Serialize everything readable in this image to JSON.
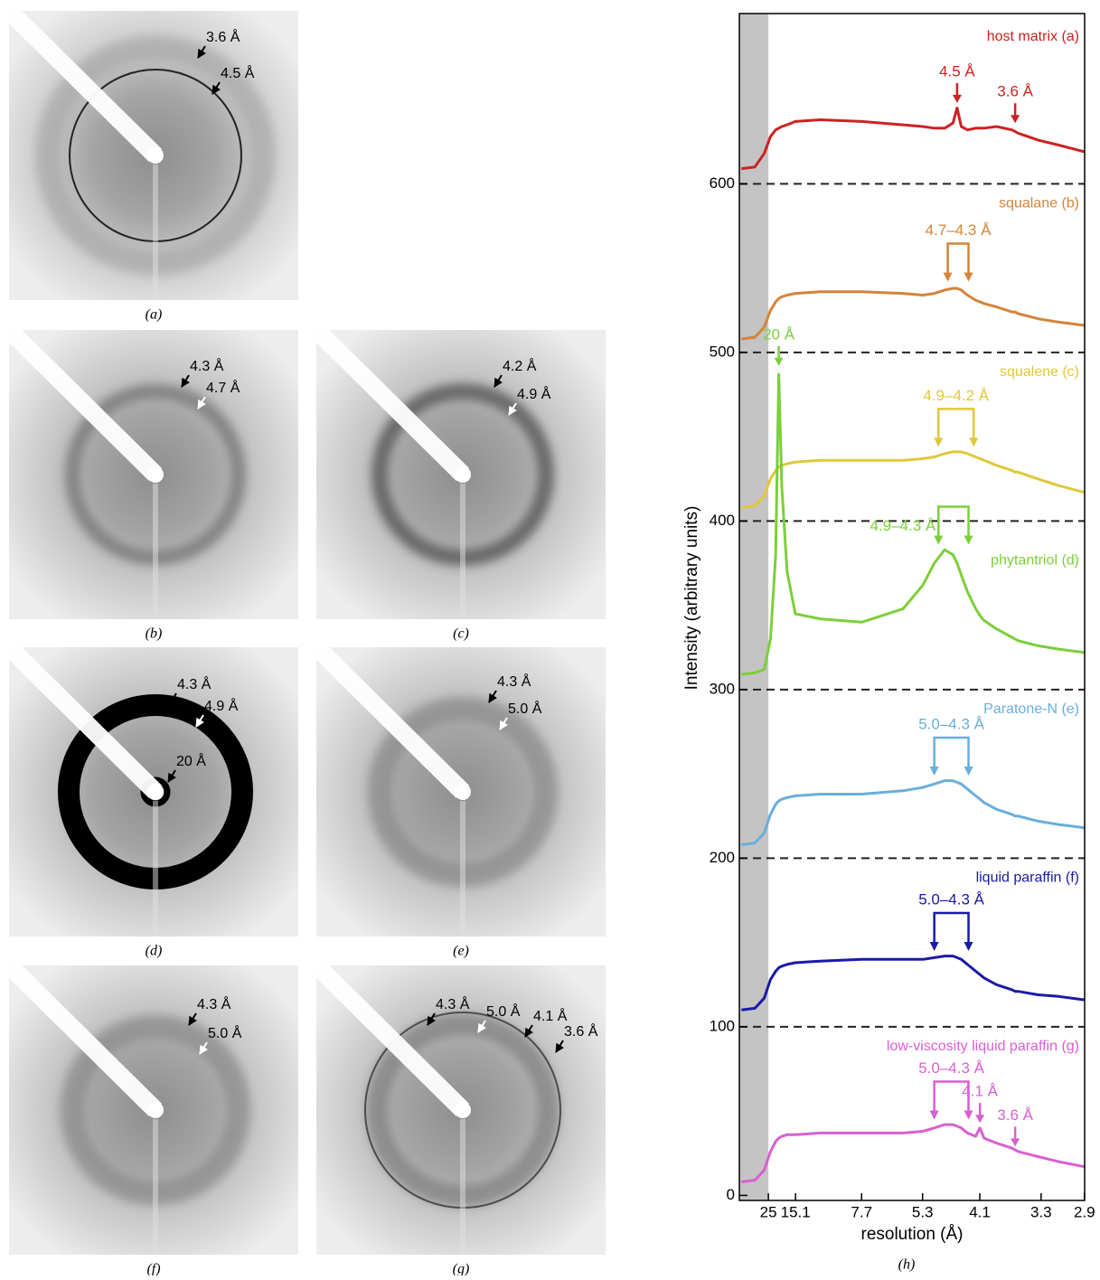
{
  "panels": [
    {
      "label": "(a)",
      "annotations": [
        "3.6 Å",
        "4.5 Å"
      ]
    },
    {
      "label": "(b)",
      "annotations": [
        "4.3 Å",
        "4.7 Å"
      ]
    },
    {
      "label": "(c)",
      "annotations": [
        "4.2 Å",
        "4.9 Å"
      ]
    },
    {
      "label": "(d)",
      "annotations": [
        "4.3 Å",
        "4.9 Å",
        "20 Å"
      ]
    },
    {
      "label": "(e)",
      "annotations": [
        "4.3 Å",
        "5.0 Å"
      ]
    },
    {
      "label": "(f)",
      "annotations": [
        "4.3 Å",
        "5.0 Å"
      ]
    },
    {
      "label": "(g)",
      "annotations": [
        "4.3 Å",
        "5.0 Å",
        "4.1 Å",
        "3.6 Å"
      ]
    }
  ],
  "chart_data": {
    "type": "line",
    "panel_label": "(h)",
    "x_label": "resolution (Å)",
    "y_label": "Intensity (arbitrary units)",
    "x": [
      0.014,
      0.027,
      0.036,
      0.042,
      0.047,
      0.05,
      0.053,
      0.058,
      0.066,
      0.09,
      0.13,
      0.17,
      0.189,
      0.2,
      0.21,
      0.218,
      0.222,
      0.226,
      0.232,
      0.24,
      0.244,
      0.248,
      0.26,
      0.275,
      0.278,
      0.281,
      0.3,
      0.32,
      0.345
    ],
    "series": [
      {
        "name": "host matrix (a)",
        "color": "#cc2222",
        "values": [
          609,
          610,
          618,
          628,
          632,
          633,
          634,
          635,
          637,
          638,
          637,
          635,
          634,
          633,
          633,
          636,
          645,
          634,
          632,
          633,
          633,
          633,
          634,
          632,
          631,
          630,
          626,
          623,
          619
        ]
      },
      {
        "name": "squalane (b)",
        "color": "#d4843a",
        "values": [
          508,
          509,
          515,
          525,
          530,
          532,
          533,
          534,
          535,
          536,
          536,
          535,
          534,
          535,
          537,
          538,
          538,
          537,
          534,
          531,
          530,
          529,
          527,
          524,
          524,
          523,
          520,
          518,
          516
        ]
      },
      {
        "name": "squalene (c)",
        "color": "#e0c83a",
        "values": [
          408,
          409,
          415,
          425,
          430,
          432,
          433,
          434,
          435,
          436,
          436,
          436,
          437,
          438,
          440,
          441,
          441,
          441,
          440,
          438,
          437,
          436,
          433,
          430,
          429,
          429,
          425,
          421,
          417
        ]
      },
      {
        "name": "phytantriol (d)",
        "color": "#7ccf3a",
        "values": [
          309,
          310,
          312,
          330,
          380,
          487,
          420,
          370,
          345,
          342,
          340,
          348,
          362,
          375,
          383,
          380,
          375,
          368,
          358,
          348,
          344,
          341,
          336,
          331,
          330,
          329,
          326,
          324,
          322
        ]
      },
      {
        "name": "Paratone-N (e)",
        "color": "#6aaedc",
        "values": [
          208,
          209,
          215,
          226,
          232,
          234,
          235,
          236,
          237,
          238,
          238,
          240,
          242,
          244,
          246,
          246,
          245,
          244,
          241,
          237,
          235,
          233,
          229,
          226,
          225,
          225,
          222,
          220,
          218
        ]
      },
      {
        "name": "liquid paraffin (f)",
        "color": "#1a1aa8",
        "values": [
          110,
          111,
          117,
          128,
          133,
          135,
          136,
          137,
          138,
          139,
          140,
          140,
          140,
          141,
          142,
          142,
          141,
          140,
          137,
          133,
          131,
          129,
          125,
          122,
          121,
          121,
          119,
          118,
          116
        ]
      },
      {
        "name": "low-viscosity liquid paraffin (g)",
        "color": "#d860d0",
        "values": [
          8,
          9,
          15,
          26,
          32,
          34,
          35,
          36,
          36,
          37,
          37,
          37,
          38,
          40,
          42,
          42,
          41,
          40,
          37,
          35,
          40,
          34,
          31,
          28,
          27,
          26,
          23,
          20,
          17
        ]
      }
    ],
    "baselines": [
      600,
      500,
      400,
      300,
      200,
      100
    ],
    "shaded_xrange": [
      0.012,
      0.04
    ],
    "annotations": [
      {
        "text": "4.5 Å",
        "series": 0,
        "x": [
          0.222
        ],
        "y": 648
      },
      {
        "text": "3.6 Å",
        "series": 0,
        "x": [
          0.278
        ],
        "y": 636
      },
      {
        "text": "4.7–4.3 Å",
        "series": 1,
        "x": [
          0.213,
          0.233
        ],
        "y": 542
      },
      {
        "text": "20 Å",
        "series": 3,
        "x": [
          0.05
        ],
        "y": 492
      },
      {
        "text": "4.9–4.2 Å",
        "series": 2,
        "x": [
          0.204,
          0.238
        ],
        "y": 444
      },
      {
        "text": "4.9–4.3 Å",
        "series": 3,
        "x": [
          0.204,
          0.233
        ],
        "y": 386
      },
      {
        "text": "5.0–4.3 Å",
        "series": 4,
        "x": [
          0.2,
          0.233
        ],
        "y": 249
      },
      {
        "text": "5.0–4.3 Å",
        "series": 5,
        "x": [
          0.2,
          0.233
        ],
        "y": 145
      },
      {
        "text": "5.0–4.3 Å",
        "series": 6,
        "x": [
          0.2,
          0.233
        ],
        "y": 45
      },
      {
        "text": "4.1 Å",
        "series": 6,
        "x": [
          0.244
        ],
        "y": 43
      },
      {
        "text": "3.6 Å",
        "series": 6,
        "x": [
          0.278
        ],
        "y": 29
      }
    ],
    "xlim": [
      0.012,
      0.345
    ],
    "ylim": [
      -3,
      701
    ],
    "xticks": [
      {
        "value": 0.04,
        "label": "25"
      },
      {
        "value": 0.0662,
        "label": "15.1"
      },
      {
        "value": 0.1299,
        "label": "7.7"
      },
      {
        "value": 0.1887,
        "label": "5.3"
      },
      {
        "value": 0.2439,
        "label": "4.1"
      },
      {
        "value": 0.303,
        "label": "3.3"
      },
      {
        "value": 0.3448,
        "label": "2.9"
      }
    ],
    "yticks": [
      0,
      100,
      200,
      300,
      400,
      500,
      600
    ]
  }
}
